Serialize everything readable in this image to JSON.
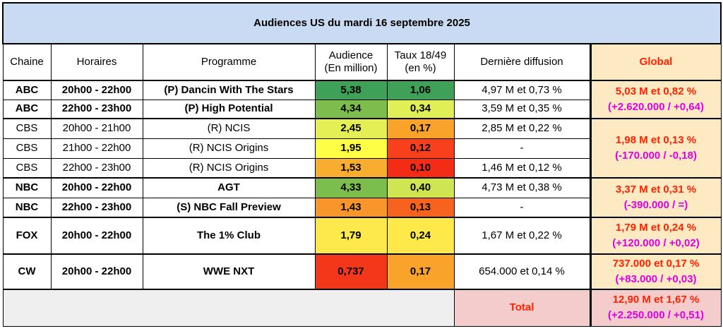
{
  "title": "Audiences US du mardi 16 septembre 2025",
  "headers": {
    "chaine": "Chaine",
    "horaires": "Horaires",
    "programme": "Programme",
    "audience_l1": "Audience",
    "audience_l2": "(En million)",
    "taux_l1": "Taux 18/49",
    "taux_l2": "(en %)",
    "derniere": "Dernière diffusion",
    "global": "Global"
  },
  "rows": [
    {
      "chaine": "ABC",
      "horaires": "20h00 - 22h00",
      "programme": "(P) Dancin With The Stars",
      "audience": "5,38",
      "taux": "1,06",
      "derniere": "4,97 M et 0,73 %",
      "aud_color": "#3fa057",
      "taux_color": "#3fa057"
    },
    {
      "chaine": "ABC",
      "horaires": "22h00 - 23h00",
      "programme": "(P) High Potential",
      "audience": "4,34",
      "taux": "0,34",
      "derniere": "3,59 M et 0,35 %",
      "aud_color": "#7cbd4d",
      "taux_color": "#e0ef55"
    },
    {
      "chaine": "CBS",
      "horaires": "20h00 - 21h00",
      "programme": "(R) NCIS",
      "audience": "2,45",
      "taux": "0,17",
      "derniere": "2,85 M et 0,22 %",
      "aud_color": "#e3ef54",
      "taux_color": "#f9a32b"
    },
    {
      "chaine": "CBS",
      "horaires": "21h00 - 22h00",
      "programme": "(R) NCIS Origins",
      "audience": "1,95",
      "taux": "0,12",
      "derniere": "-",
      "aud_color": "#fefe44",
      "taux_color": "#f8401c"
    },
    {
      "chaine": "CBS",
      "horaires": "22h00 - 23h00",
      "programme": "(R) NCIS Origins",
      "audience": "1,53",
      "taux": "0,10",
      "derniere": "1,46 M et 0,12 %",
      "aud_color": "#f8ad30",
      "taux_color": "#f42c16"
    },
    {
      "chaine": "NBC",
      "horaires": "20h00 - 22h00",
      "programme": "AGT",
      "audience": "4,33",
      "taux": "0,40",
      "derniere": "4,73 M et 0,38 %",
      "aud_color": "#7cbd4d",
      "taux_color": "#cfe652"
    },
    {
      "chaine": "NBC",
      "horaires": "22h00 - 23h00",
      "programme": "(S) NBC Fall Preview",
      "audience": "1,43",
      "taux": "0,13",
      "derniere": "-",
      "aud_color": "#f8962c",
      "taux_color": "#f7621f"
    },
    {
      "chaine": "FOX",
      "horaires": "20h00 - 22h00",
      "programme": "The 1% Club",
      "audience": "1,79",
      "taux": "0,24",
      "derniere": "1,67 M et 0,22 %",
      "aud_color": "#fee94c",
      "taux_color": "#fde94a"
    },
    {
      "chaine": "CW",
      "horaires": "20h00 - 22h00",
      "programme": "WWE NXT",
      "audience": "0,737",
      "taux": "0,17",
      "derniere": "654.000 et 0,14 %",
      "aud_color": "#f4361a",
      "taux_color": "#f9a32b"
    }
  ],
  "global": {
    "abc": {
      "main": "5,03 M et 0,82 %",
      "delta": "(+2.620.000 / +0,64)"
    },
    "cbs": {
      "main": "1,98 M et 0,13 %",
      "delta": "(-170.000 / -0,18)"
    },
    "nbc": {
      "main": "3,37 M et 0,31 %",
      "delta": "(-390.000 / =)"
    },
    "fox": {
      "main": "1,79 M et 0,24 %",
      "delta": "(+120.000 / +0,02)"
    },
    "cw": {
      "main": "737.000 et 0,17 %",
      "delta": "(+83.000 / +0,03)"
    }
  },
  "total": {
    "label": "Total",
    "main": "12,90 M et 1,67 %",
    "delta": "(+2.250.000 / +0,51)"
  }
}
